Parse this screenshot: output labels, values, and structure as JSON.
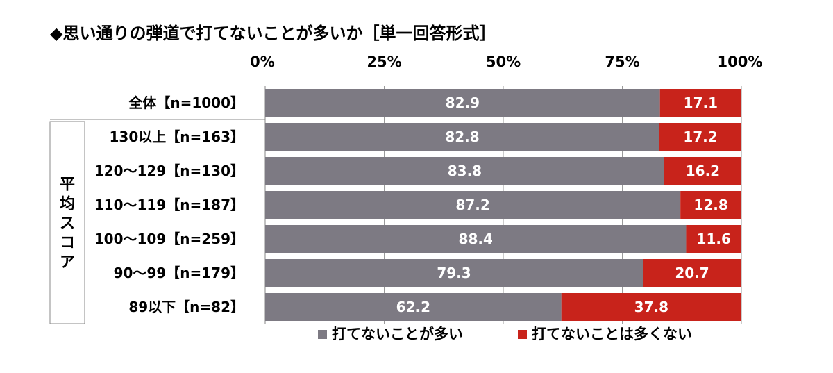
{
  "chart_data": {
    "type": "bar",
    "orientation": "horizontal",
    "stacked": true,
    "title": "◆思い通りの弾道で打てないことが多いか［単一回答形式］",
    "x_ticks": [
      "0%",
      "25%",
      "50%",
      "75%",
      "100%"
    ],
    "xlim": [
      0,
      100
    ],
    "group_label": "平均スコア",
    "categories": [
      "全体【n=1000】",
      "130以上【n=163】",
      "120～129【n=130】",
      "110～119【n=187】",
      "100～109【n=259】",
      "90～99【n=179】",
      "89以下【n=82】"
    ],
    "series": [
      {
        "name": "打てないことが多い",
        "color": "#7d7a83",
        "values": [
          82.9,
          82.8,
          83.8,
          87.2,
          88.4,
          79.3,
          62.2
        ]
      },
      {
        "name": "打てないことは多くない",
        "color": "#c8231b",
        "values": [
          17.1,
          17.2,
          16.2,
          12.8,
          11.6,
          20.7,
          37.8
        ]
      }
    ],
    "legend_position": "bottom",
    "grid": true
  }
}
